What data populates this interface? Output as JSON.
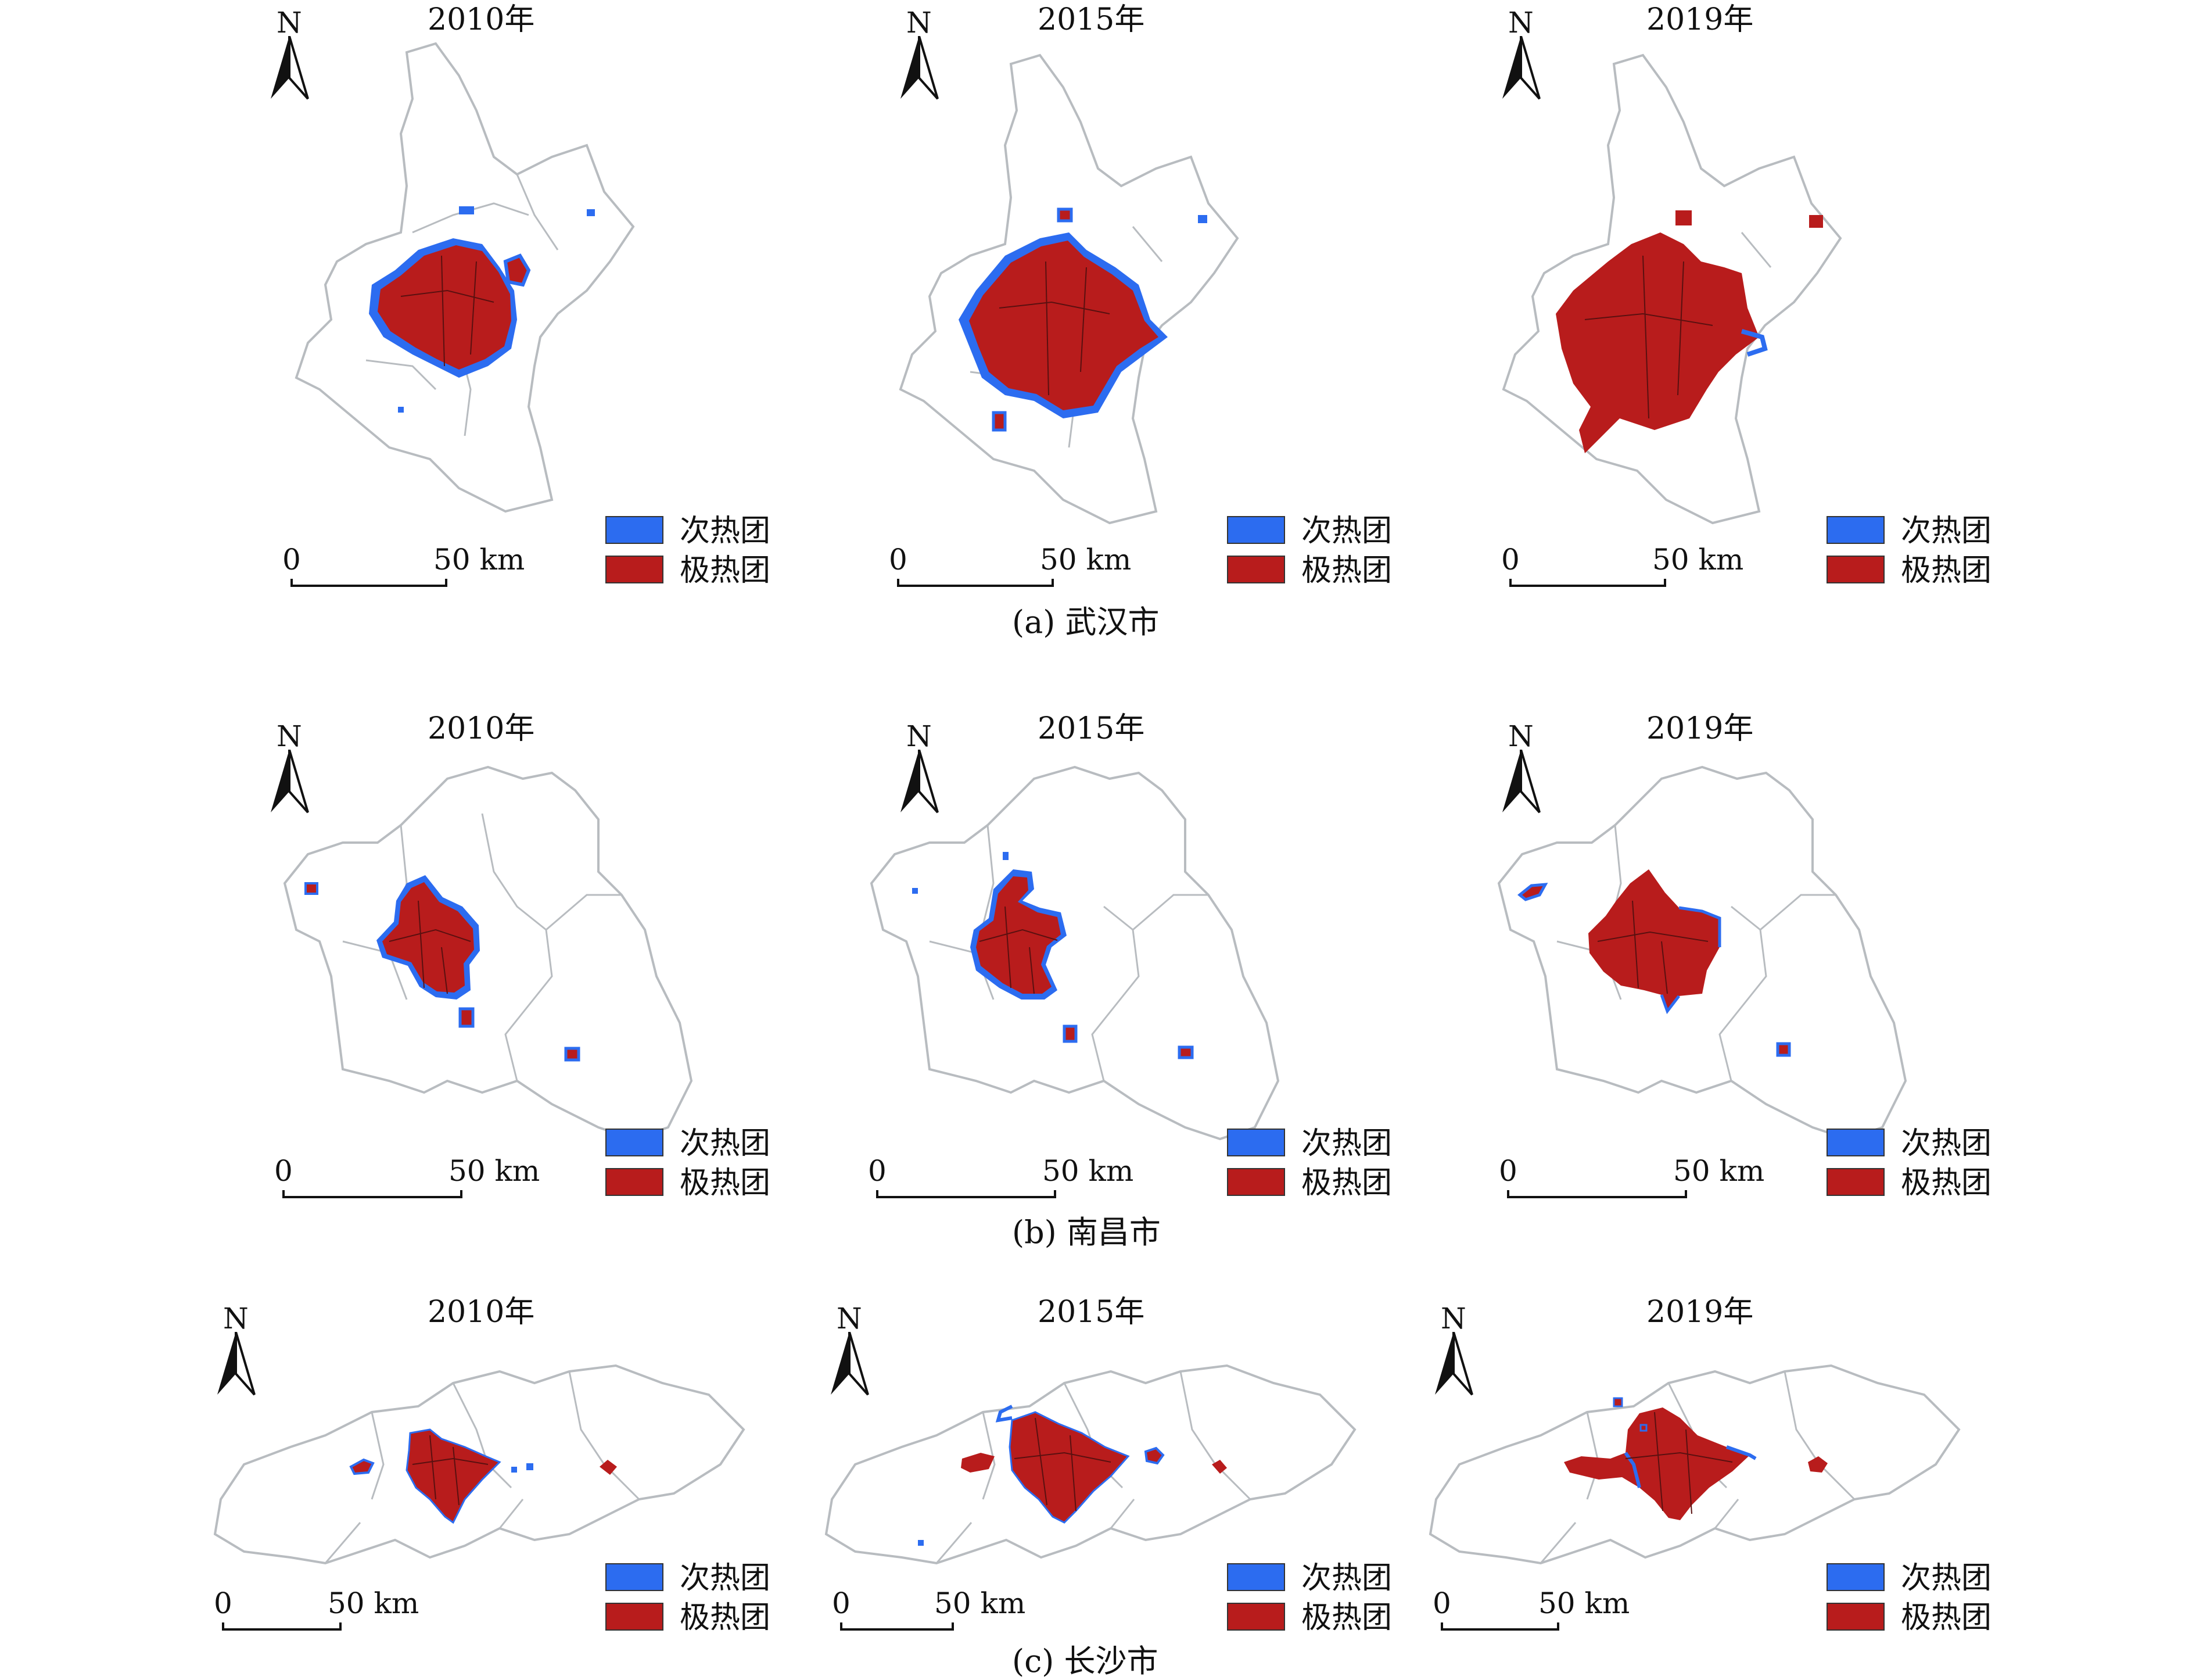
{
  "figure": {
    "rows": [
      {
        "caption": "(a) 武汉市",
        "panels": [
          {
            "year": "2010年",
            "north": "N",
            "scale": {
              "start": "0",
              "end": "50 km"
            }
          },
          {
            "year": "2015年",
            "north": "N",
            "scale": {
              "start": "0",
              "end": "50 km"
            }
          },
          {
            "year": "2019年",
            "north": "N",
            "scale": {
              "start": "0",
              "end": "50 km"
            }
          }
        ]
      },
      {
        "caption": "(b) 南昌市",
        "panels": [
          {
            "year": "2010年",
            "north": "N",
            "scale": {
              "start": "0",
              "end": "50 km"
            }
          },
          {
            "year": "2015年",
            "north": "N",
            "scale": {
              "start": "0",
              "end": "50 km"
            }
          },
          {
            "year": "2019年",
            "north": "N",
            "scale": {
              "start": "0",
              "end": "50 km"
            }
          }
        ]
      },
      {
        "caption": "(c) 长沙市",
        "panels": [
          {
            "year": "2010年",
            "north": "N",
            "scale": {
              "start": "0",
              "end": "50 km"
            }
          },
          {
            "year": "2015年",
            "north": "N",
            "scale": {
              "start": "0",
              "end": "50 km"
            }
          },
          {
            "year": "2019年",
            "north": "N",
            "scale": {
              "start": "0",
              "end": "50 km"
            }
          }
        ]
      }
    ],
    "legend": {
      "secondary": {
        "label": "次热团",
        "color": "#2c6cf0"
      },
      "extreme": {
        "label": "极热团",
        "color": "#b81c1c"
      }
    },
    "colors": {
      "boundary": "#b8bcc0",
      "inner_boundary": "#5a1010",
      "background": "#ffffff"
    }
  }
}
